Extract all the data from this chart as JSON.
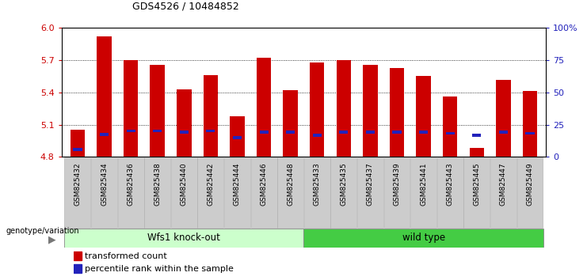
{
  "title": "GDS4526 / 10484852",
  "categories": [
    "GSM825432",
    "GSM825434",
    "GSM825436",
    "GSM825438",
    "GSM825440",
    "GSM825442",
    "GSM825444",
    "GSM825446",
    "GSM825448",
    "GSM825433",
    "GSM825435",
    "GSM825437",
    "GSM825439",
    "GSM825441",
    "GSM825443",
    "GSM825445",
    "GSM825447",
    "GSM825449"
  ],
  "red_values": [
    5.05,
    5.92,
    5.7,
    5.66,
    5.43,
    5.56,
    5.18,
    5.72,
    5.42,
    5.68,
    5.7,
    5.66,
    5.63,
    5.55,
    5.36,
    4.88,
    5.52,
    5.41
  ],
  "blue_values": [
    4.87,
    5.01,
    5.04,
    5.04,
    5.03,
    5.04,
    4.98,
    5.03,
    5.03,
    5.0,
    5.03,
    5.03,
    5.03,
    5.03,
    5.02,
    5.0,
    5.03,
    5.02
  ],
  "y_min": 4.8,
  "y_max": 6.0,
  "y_ticks_left": [
    4.8,
    5.1,
    5.4,
    5.7,
    6.0
  ],
  "right_y_ticks_pct": [
    0,
    25,
    50,
    75,
    100
  ],
  "right_y_labels": [
    "0",
    "25",
    "50",
    "75",
    "100%"
  ],
  "group1_label": "Wfs1 knock-out",
  "group2_label": "wild type",
  "group1_count": 9,
  "group2_count": 9,
  "genotype_label": "genotype/variation",
  "legend_red": "transformed count",
  "legend_blue": "percentile rank within the sample",
  "bar_color_red": "#cc0000",
  "bar_color_blue": "#2222bb",
  "group1_bg": "#ccffcc",
  "group2_bg": "#44cc44",
  "tick_bg": "#cccccc",
  "fig_bg": "#ffffff"
}
